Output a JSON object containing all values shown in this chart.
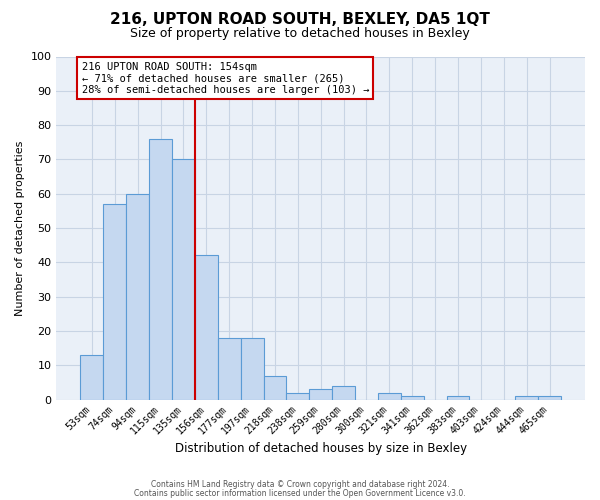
{
  "title": "216, UPTON ROAD SOUTH, BEXLEY, DA5 1QT",
  "subtitle": "Size of property relative to detached houses in Bexley",
  "xlabel": "Distribution of detached houses by size in Bexley",
  "ylabel": "Number of detached properties",
  "bar_labels": [
    "53sqm",
    "74sqm",
    "94sqm",
    "115sqm",
    "135sqm",
    "156sqm",
    "177sqm",
    "197sqm",
    "218sqm",
    "238sqm",
    "259sqm",
    "280sqm",
    "300sqm",
    "321sqm",
    "341sqm",
    "362sqm",
    "383sqm",
    "403sqm",
    "424sqm",
    "444sqm",
    "465sqm"
  ],
  "bar_values": [
    13,
    57,
    60,
    76,
    70,
    42,
    18,
    18,
    7,
    2,
    3,
    4,
    0,
    2,
    1,
    0,
    1,
    0,
    0,
    1,
    1
  ],
  "bar_color": "#c5d8f0",
  "bar_edge_color": "#5b9bd5",
  "ax_facecolor": "#eaf0f8",
  "ylim": [
    0,
    100
  ],
  "vline_color": "#cc0000",
  "annotation_lines": [
    "216 UPTON ROAD SOUTH: 154sqm",
    "← 71% of detached houses are smaller (265)",
    "28% of semi-detached houses are larger (103) →"
  ],
  "footer_lines": [
    "Contains HM Land Registry data © Crown copyright and database right 2024.",
    "Contains public sector information licensed under the Open Government Licence v3.0."
  ],
  "background_color": "#ffffff",
  "grid_color": "#c8d4e4"
}
